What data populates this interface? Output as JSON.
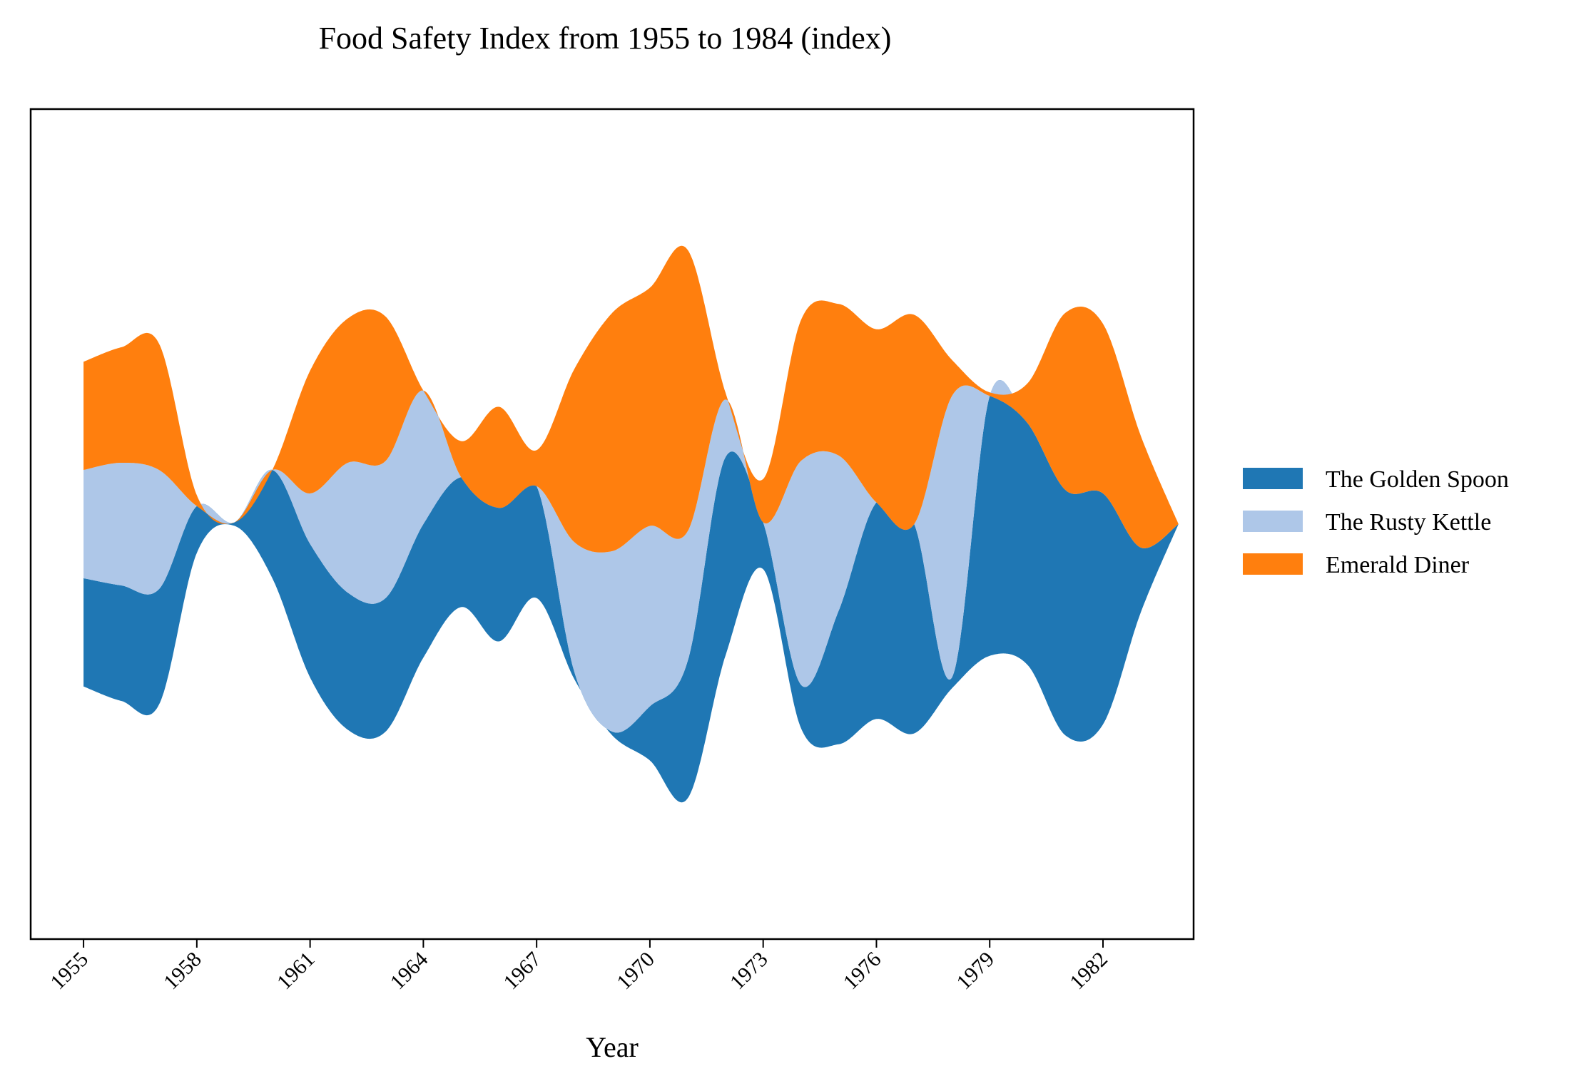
{
  "chart_data": {
    "type": "area",
    "subtype": "streamgraph",
    "title": "Food Safety Index from 1955 to 1984 (index)",
    "xlabel": "Year",
    "ylabel": "",
    "x": [
      1955,
      1956,
      1957,
      1958,
      1959,
      1960,
      1961,
      1962,
      1963,
      1964,
      1965,
      1966,
      1967,
      1968,
      1969,
      1970,
      1971,
      1972,
      1973,
      1974,
      1975,
      1976,
      1977,
      1978,
      1979,
      1980,
      1981,
      1982,
      1983,
      1984
    ],
    "xticks": [
      1955,
      1958,
      1961,
      1964,
      1967,
      1970,
      1973,
      1976,
      1979,
      1982
    ],
    "xlim": [
      1953.6,
      1984.4
    ],
    "ylim": [
      -115,
      115
    ],
    "y_axis_visible": false,
    "grid": false,
    "legend_position": "right",
    "series": [
      {
        "name": "The Golden Spoon",
        "color": "#1f77b4",
        "values": [
          30,
          32,
          32,
          13,
          1,
          30,
          37,
          38,
          37,
          37,
          36,
          37,
          31,
          2,
          1,
          15,
          38,
          55,
          13,
          12,
          37,
          60,
          58,
          3,
          72,
          67,
          68,
          64,
          18,
          0
        ]
      },
      {
        "name": "The Rusty Kettle",
        "color": "#aec7e8",
        "values": [
          30,
          34,
          33,
          0,
          0,
          0,
          14,
          36,
          38,
          37,
          0,
          0,
          0,
          36,
          50,
          50,
          36,
          16,
          0,
          62,
          43,
          0,
          0,
          78,
          0,
          0,
          0,
          0,
          0,
          0
        ]
      },
      {
        "name": "Emerald Diner",
        "color": "#ff7f0e",
        "values": [
          30,
          32,
          35,
          3,
          0,
          0,
          34,
          40,
          40,
          0,
          10,
          28,
          10,
          48,
          66,
          66,
          78,
          2,
          12,
          39,
          42,
          48,
          58,
          10,
          1,
          11,
          49,
          47,
          31,
          0
        ]
      }
    ]
  },
  "legend": {
    "items": [
      {
        "label": "The Golden Spoon",
        "color": "#1f77b4"
      },
      {
        "label": "The Rusty Kettle",
        "color": "#aec7e8"
      },
      {
        "label": "Emerald Diner",
        "color": "#ff7f0e"
      }
    ]
  }
}
